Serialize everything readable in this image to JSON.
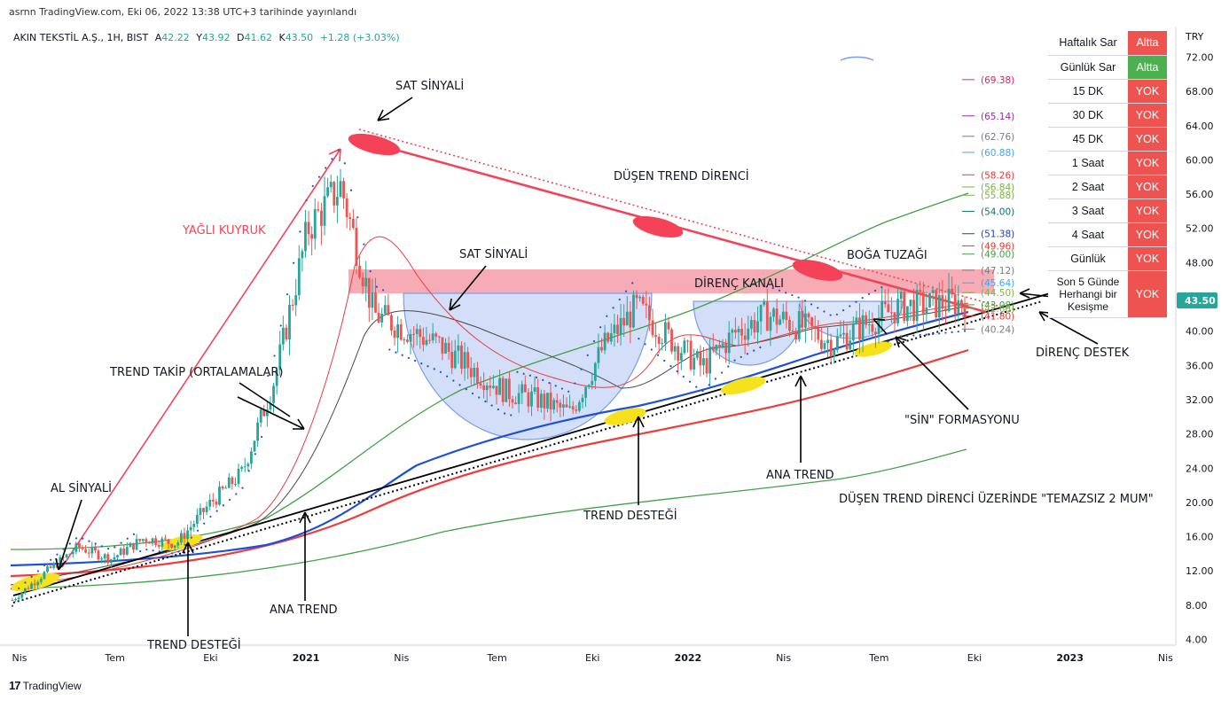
{
  "published": "asrnn TradingView.com, Eki 06, 2022 13:38 UTC+3 tarihinde yayınlandı",
  "symbol_line": {
    "name": "AKIN TEKSTİL A.Ş., 1H, BIST",
    "open_label": "A",
    "open": "42.22",
    "high_label": "Y",
    "high": "43.92",
    "low_label": "D",
    "low": "41.62",
    "close_label": "K",
    "close": "43.50",
    "change": "+1.28 (+3.03%)"
  },
  "chart_data": {
    "type": "line",
    "title": "AKIN TEKSTİL A.Ş., 1H, BIST",
    "currency": "TRY",
    "ylim": [
      4,
      72
    ],
    "y_ticks": [
      "72.00",
      "68.00",
      "64.00",
      "60.00",
      "56.00",
      "52.00",
      "48.00",
      "44.00",
      "40.00",
      "36.00",
      "32.00",
      "28.00",
      "24.00",
      "20.00",
      "16.00",
      "12.00",
      "8.00",
      "4.00"
    ],
    "x_ticks": [
      "Nis",
      "Tem",
      "Eki",
      "2021",
      "Nis",
      "Tem",
      "Eki",
      "2022",
      "Nis",
      "Tem",
      "Eki",
      "2023",
      "Nis"
    ],
    "last_price": "43.50",
    "close_path": [
      {
        "x": "Nis 2020",
        "y": 8.6
      },
      {
        "x": "May 2020",
        "y": 11.8
      },
      {
        "x": "Haz 2020",
        "y": 14.8
      },
      {
        "x": "Tem 2020",
        "y": 13.4
      },
      {
        "x": "Ağu 2020",
        "y": 15.8
      },
      {
        "x": "Eki 2020",
        "y": 15.2
      },
      {
        "x": "Eki 2020",
        "y": 19.8
      },
      {
        "x": "Kas 2020",
        "y": 23.5
      },
      {
        "x": "Ara 2020",
        "y": 34.6
      },
      {
        "x": "Oca 2021",
        "y": 52.0
      },
      {
        "x": "Şub 2021",
        "y": 57.0
      },
      {
        "x": "Mar 2021",
        "y": 42.0
      },
      {
        "x": "Nis 2021",
        "y": 40.2
      },
      {
        "x": "May 2021",
        "y": 38.4
      },
      {
        "x": "Haz 2021",
        "y": 35.6
      },
      {
        "x": "Tem 2021",
        "y": 33.0
      },
      {
        "x": "Ağu 2021",
        "y": 32.0
      },
      {
        "x": "Eki 2021",
        "y": 30.4
      },
      {
        "x": "Kas 2021",
        "y": 38.2
      },
      {
        "x": "Ara 2021",
        "y": 42.8
      },
      {
        "x": "Oca 2022",
        "y": 39.2
      },
      {
        "x": "Şub 2022",
        "y": 35.8
      },
      {
        "x": "Mar 2022",
        "y": 39.8
      },
      {
        "x": "Nis 2022",
        "y": 41.9
      },
      {
        "x": "May 2022",
        "y": 40.6
      },
      {
        "x": "Haz 2022",
        "y": 38.6
      },
      {
        "x": "Tem 2022",
        "y": 40.9
      },
      {
        "x": "Ağu 2022",
        "y": 42.8
      },
      {
        "x": "Eyl 2022",
        "y": 43.1
      },
      {
        "x": "Eki 2022",
        "y": 43.5
      }
    ],
    "fib_levels": [
      {
        "value": "(69.38)",
        "color": "#e0245e"
      },
      {
        "value": "(65.14)",
        "color": "#9c27b0"
      },
      {
        "value": "(62.76)",
        "color": "#787b86"
      },
      {
        "value": "(60.88)",
        "color": "#42a5f5"
      },
      {
        "value": "(58.26)",
        "color": "#e53935"
      },
      {
        "value": "(56.84)",
        "color": "#7cb342"
      },
      {
        "value": "(55.88)",
        "color": "#7cb342"
      },
      {
        "value": "(54.00)",
        "color": "#00796b"
      },
      {
        "value": "(51.38)",
        "color": "#1e40af"
      },
      {
        "value": "(49.96)",
        "color": "#e53935"
      },
      {
        "value": "(49.00)",
        "color": "#43a047"
      },
      {
        "value": "(47.12)",
        "color": "#787b86"
      },
      {
        "value": "(45.64)",
        "color": "#42a5f5"
      },
      {
        "value": "(44.50)",
        "color": "#7cb342"
      },
      {
        "value": "(43.08)",
        "color": "#43a047"
      },
      {
        "value": "(42.66)",
        "color": "#7cb342"
      },
      {
        "value": "(41.80)",
        "color": "#e53935"
      },
      {
        "value": "(40.24)",
        "color": "#787b86"
      }
    ],
    "annotations": [
      "SAT SİNYALİ",
      "DÜŞEN TREND DİRENCİ",
      "YAĞLI KUYRUK",
      "SAT SİNYALİ",
      "BOĞA TUZAĞI",
      "DİRENÇ KANALI",
      "TREND TAKİP (ORTALAMALAR)",
      "DİRENÇ DESTEK",
      "\"SİN\" FORMASYONU",
      "AL SİNYALİ",
      "ANA TREND",
      "DÜŞEN TREND DİRENCİ ÜZERİNDE \"TEMAZSIZ 2 MUM\"",
      "TREND DESTEĞİ",
      "ANA TREND",
      "TREND DESTEĞİ"
    ],
    "grid": false,
    "legend": "none"
  },
  "status_table": [
    {
      "label": "Haftalık Sar",
      "status": "Altta",
      "color": "#ef5350"
    },
    {
      "label": "Günlük Sar",
      "status": "Altta",
      "color": "#4caf50"
    },
    {
      "label": "15 DK",
      "status": "YOK",
      "color": "#ef5350"
    },
    {
      "label": "30 DK",
      "status": "YOK",
      "color": "#ef5350"
    },
    {
      "label": "45 DK",
      "status": "YOK",
      "color": "#ef5350"
    },
    {
      "label": "1 Saat",
      "status": "YOK",
      "color": "#ef5350"
    },
    {
      "label": "2 Saat",
      "status": "YOK",
      "color": "#ef5350"
    },
    {
      "label": "3 Saat",
      "status": "YOK",
      "color": "#ef5350"
    },
    {
      "label": "4 Saat",
      "status": "YOK",
      "color": "#ef5350"
    },
    {
      "label": "Günlük",
      "status": "YOK",
      "color": "#ef5350"
    },
    {
      "label": "Son 5 Günde Herhangi bir Kesişme",
      "status": "YOK",
      "color": "#ef5350"
    }
  ],
  "footer": "TradingView",
  "colors": {
    "up": "#26a69a",
    "down": "#ef5350",
    "resistance": "#f44358",
    "channel": "#f7a1ab",
    "ma_blue": "#1e4fd8",
    "ma_red": "#ef3b3b",
    "ma_green": "#43a047"
  }
}
